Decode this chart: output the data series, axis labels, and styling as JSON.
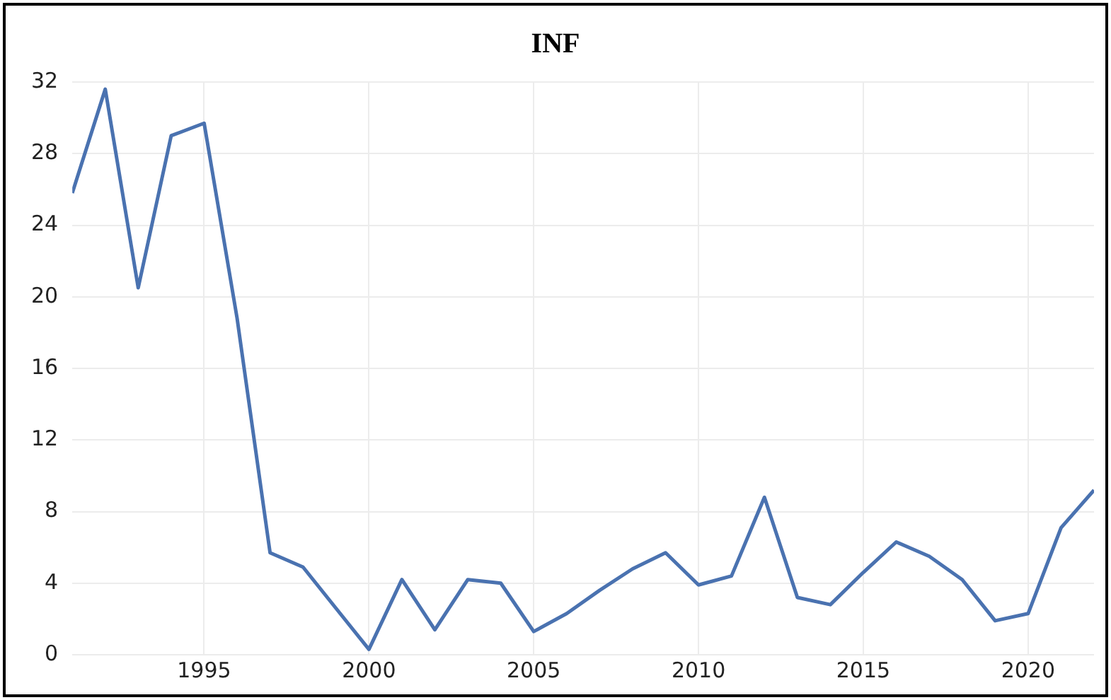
{
  "chart_data": {
    "type": "line",
    "title": "INF",
    "x": [
      1991,
      1992,
      1993,
      1994,
      1995,
      1996,
      1997,
      1998,
      1999,
      2000,
      2001,
      2002,
      2003,
      2004,
      2005,
      2006,
      2007,
      2008,
      2009,
      2010,
      2011,
      2012,
      2013,
      2014,
      2015,
      2016,
      2017,
      2018,
      2019,
      2020,
      2021,
      2022
    ],
    "series": [
      {
        "color": "#4a72b0",
        "values": [
          25.8,
          31.6,
          20.5,
          29.0,
          29.7,
          18.8,
          5.7,
          4.9,
          2.6,
          0.3,
          4.2,
          1.4,
          4.2,
          4.0,
          1.3,
          2.3,
          3.6,
          4.8,
          5.7,
          3.9,
          4.4,
          8.8,
          3.2,
          2.8,
          4.6,
          6.3,
          5.5,
          4.2,
          1.9,
          2.3,
          7.1,
          9.2
        ]
      }
    ],
    "xlim": [
      1991,
      2022
    ],
    "xticks": [
      1995,
      2000,
      2005,
      2010,
      2015,
      2020
    ],
    "ylim": [
      0,
      32
    ],
    "yticks": [
      0,
      4,
      8,
      12,
      16,
      20,
      24,
      28,
      32
    ],
    "grid": true,
    "legend": false,
    "marker": "none",
    "line_style": "solid"
  }
}
